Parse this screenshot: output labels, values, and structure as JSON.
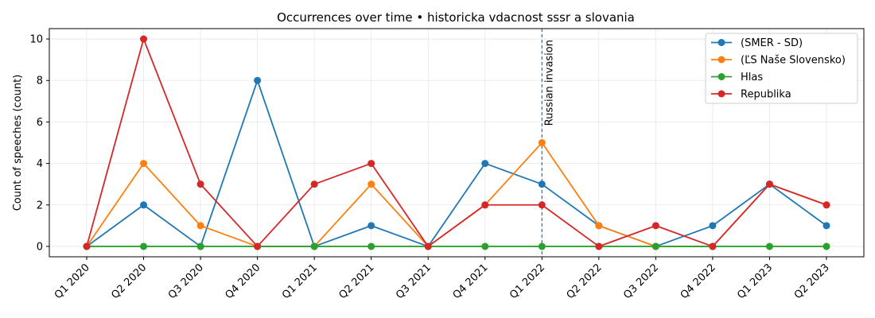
{
  "chart_data": {
    "type": "line",
    "title": "Occurrences over time • historicka vdacnost sssr a slovania",
    "xlabel": "",
    "ylabel": "Count of speeches (count)",
    "categories": [
      "Q1 2020",
      "Q2 2020",
      "Q3 2020",
      "Q4 2020",
      "Q1 2021",
      "Q2 2021",
      "Q3 2021",
      "Q4 2021",
      "Q1 2022",
      "Q2 2022",
      "Q3 2022",
      "Q4 2022",
      "Q1 2023",
      "Q2 2023"
    ],
    "ylim": [
      -0.5,
      10.5
    ],
    "yticks": [
      0,
      2,
      4,
      6,
      8,
      10
    ],
    "grid": true,
    "legend_position": "top-right",
    "series": [
      {
        "name": "(SMER - SD)",
        "color": "#1f77b4",
        "values": [
          0,
          2,
          0,
          8,
          0,
          1,
          0,
          4,
          3,
          1,
          0,
          1,
          3,
          1
        ]
      },
      {
        "name": "(ĽS Naše Slovensko)",
        "color": "#ff7f0e",
        "values": [
          0,
          4,
          1,
          0,
          0,
          3,
          0,
          2,
          5,
          1,
          0,
          0,
          3,
          2
        ]
      },
      {
        "name": "Hlas",
        "color": "#2ca02c",
        "values": [
          0,
          0,
          0,
          0,
          0,
          0,
          0,
          0,
          0,
          0,
          0,
          0,
          0,
          0
        ]
      },
      {
        "name": "Republika",
        "color": "#d62728",
        "values": [
          0,
          10,
          3,
          0,
          3,
          4,
          0,
          2,
          2,
          0,
          1,
          0,
          3,
          2
        ]
      }
    ],
    "annotations": [
      {
        "text": "Russian invasion",
        "x": "Q1 2022",
        "style": "dashed-vertical-line",
        "color": "#1f77b4"
      }
    ]
  }
}
